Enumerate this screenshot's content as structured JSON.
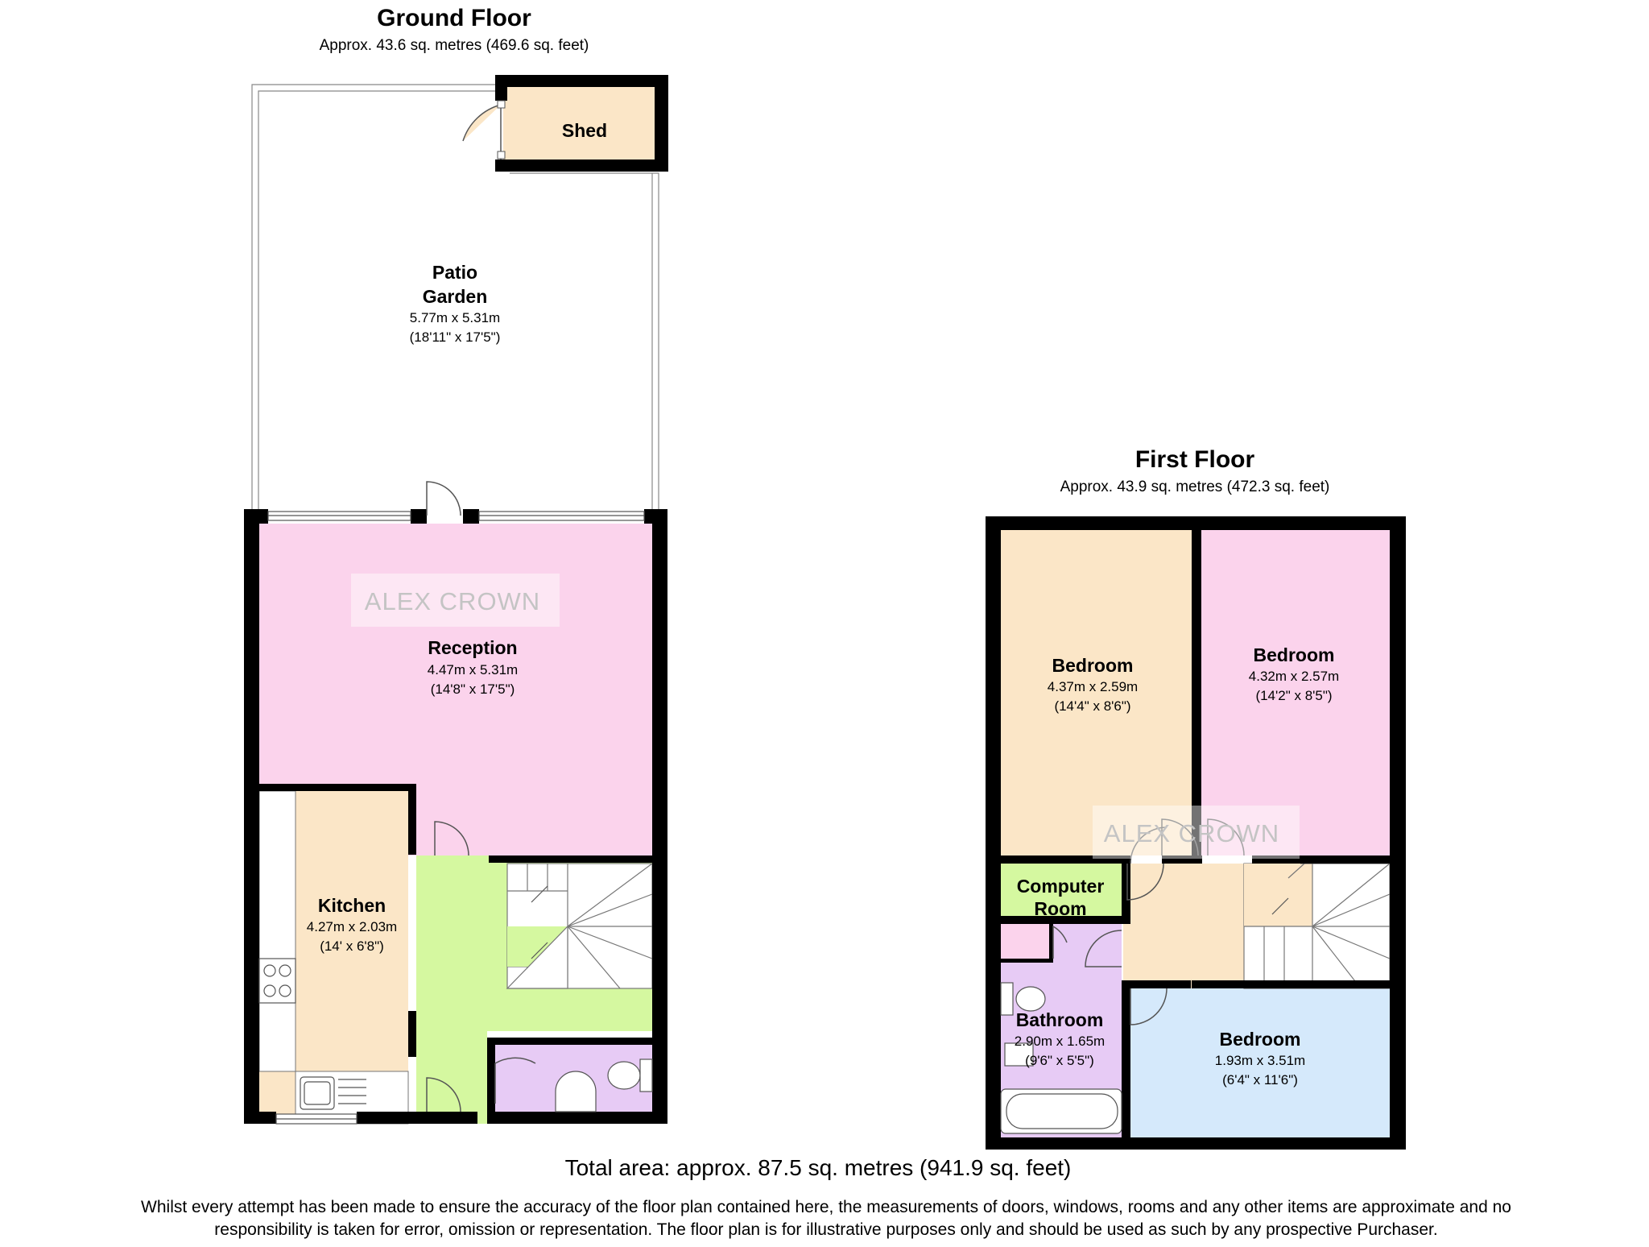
{
  "ground_floor": {
    "title": "Ground Floor",
    "area": "Approx. 43.6 sq. metres (469.6 sq. feet)",
    "rooms": {
      "shed": {
        "name": "Shed"
      },
      "patio_garden": {
        "name_line1": "Patio",
        "name_line2": "Garden",
        "dims_metric": "5.77m x 5.31m",
        "dims_imperial": "(18'11\" x 17'5\")"
      },
      "reception": {
        "name": "Reception",
        "dims_metric": "4.47m x 5.31m",
        "dims_imperial": "(14'8\" x 17'5\")"
      },
      "kitchen": {
        "name": "Kitchen",
        "dims_metric": "4.27m x 2.03m",
        "dims_imperial": "(14' x 6'8\")"
      }
    }
  },
  "first_floor": {
    "title": "First Floor",
    "area": "Approx. 43.9 sq. metres (472.3 sq. feet)",
    "rooms": {
      "bedroom_left": {
        "name": "Bedroom",
        "dims_metric": "4.37m x 2.59m",
        "dims_imperial": "(14'4\" x 8'6\")"
      },
      "bedroom_right": {
        "name": "Bedroom",
        "dims_metric": "4.32m x 2.57m",
        "dims_imperial": "(14'2\" x 8'5\")"
      },
      "computer_room": {
        "name_line1": "Computer",
        "name_line2": "Room"
      },
      "bathroom": {
        "name": "Bathroom",
        "dims_metric": "2.90m x 1.65m",
        "dims_imperial": "(9'6\" x 5'5\")"
      },
      "bedroom_small": {
        "name": "Bedroom",
        "dims_metric": "1.93m x 3.51m",
        "dims_imperial": "(6'4\" x 11'6\")"
      }
    }
  },
  "watermark": "ALEX CROWN",
  "total_area": "Total area: approx. 87.5 sq. metres (941.9 sq. feet)",
  "disclaimer_line1": "Whilst every attempt has been made to ensure the accuracy of the floor plan contained here, the measurements of doors, windows, rooms and any other items are approximate and no",
  "disclaimer_line2": "responsibility is taken for error, omission or representation. The floor plan is for illustrative purposes only and should be used as such by any prospective Purchaser.",
  "colors": {
    "wall": "#000000",
    "reception": "#fbd3ec",
    "kitchen": "#fbe6c7",
    "hall": "#d5f8a0",
    "wc": "#e7cbf5",
    "shed": "#fbe6c7",
    "bedroom_left": "#fbe6c7",
    "bedroom_right": "#fbd3ec",
    "landing": "#fbe6c7",
    "computer_room": "#d5f8a0",
    "bathroom": "#e7cbf5",
    "bedroom_small": "#d5e9fb",
    "cupboard": "#fbd3ec"
  }
}
